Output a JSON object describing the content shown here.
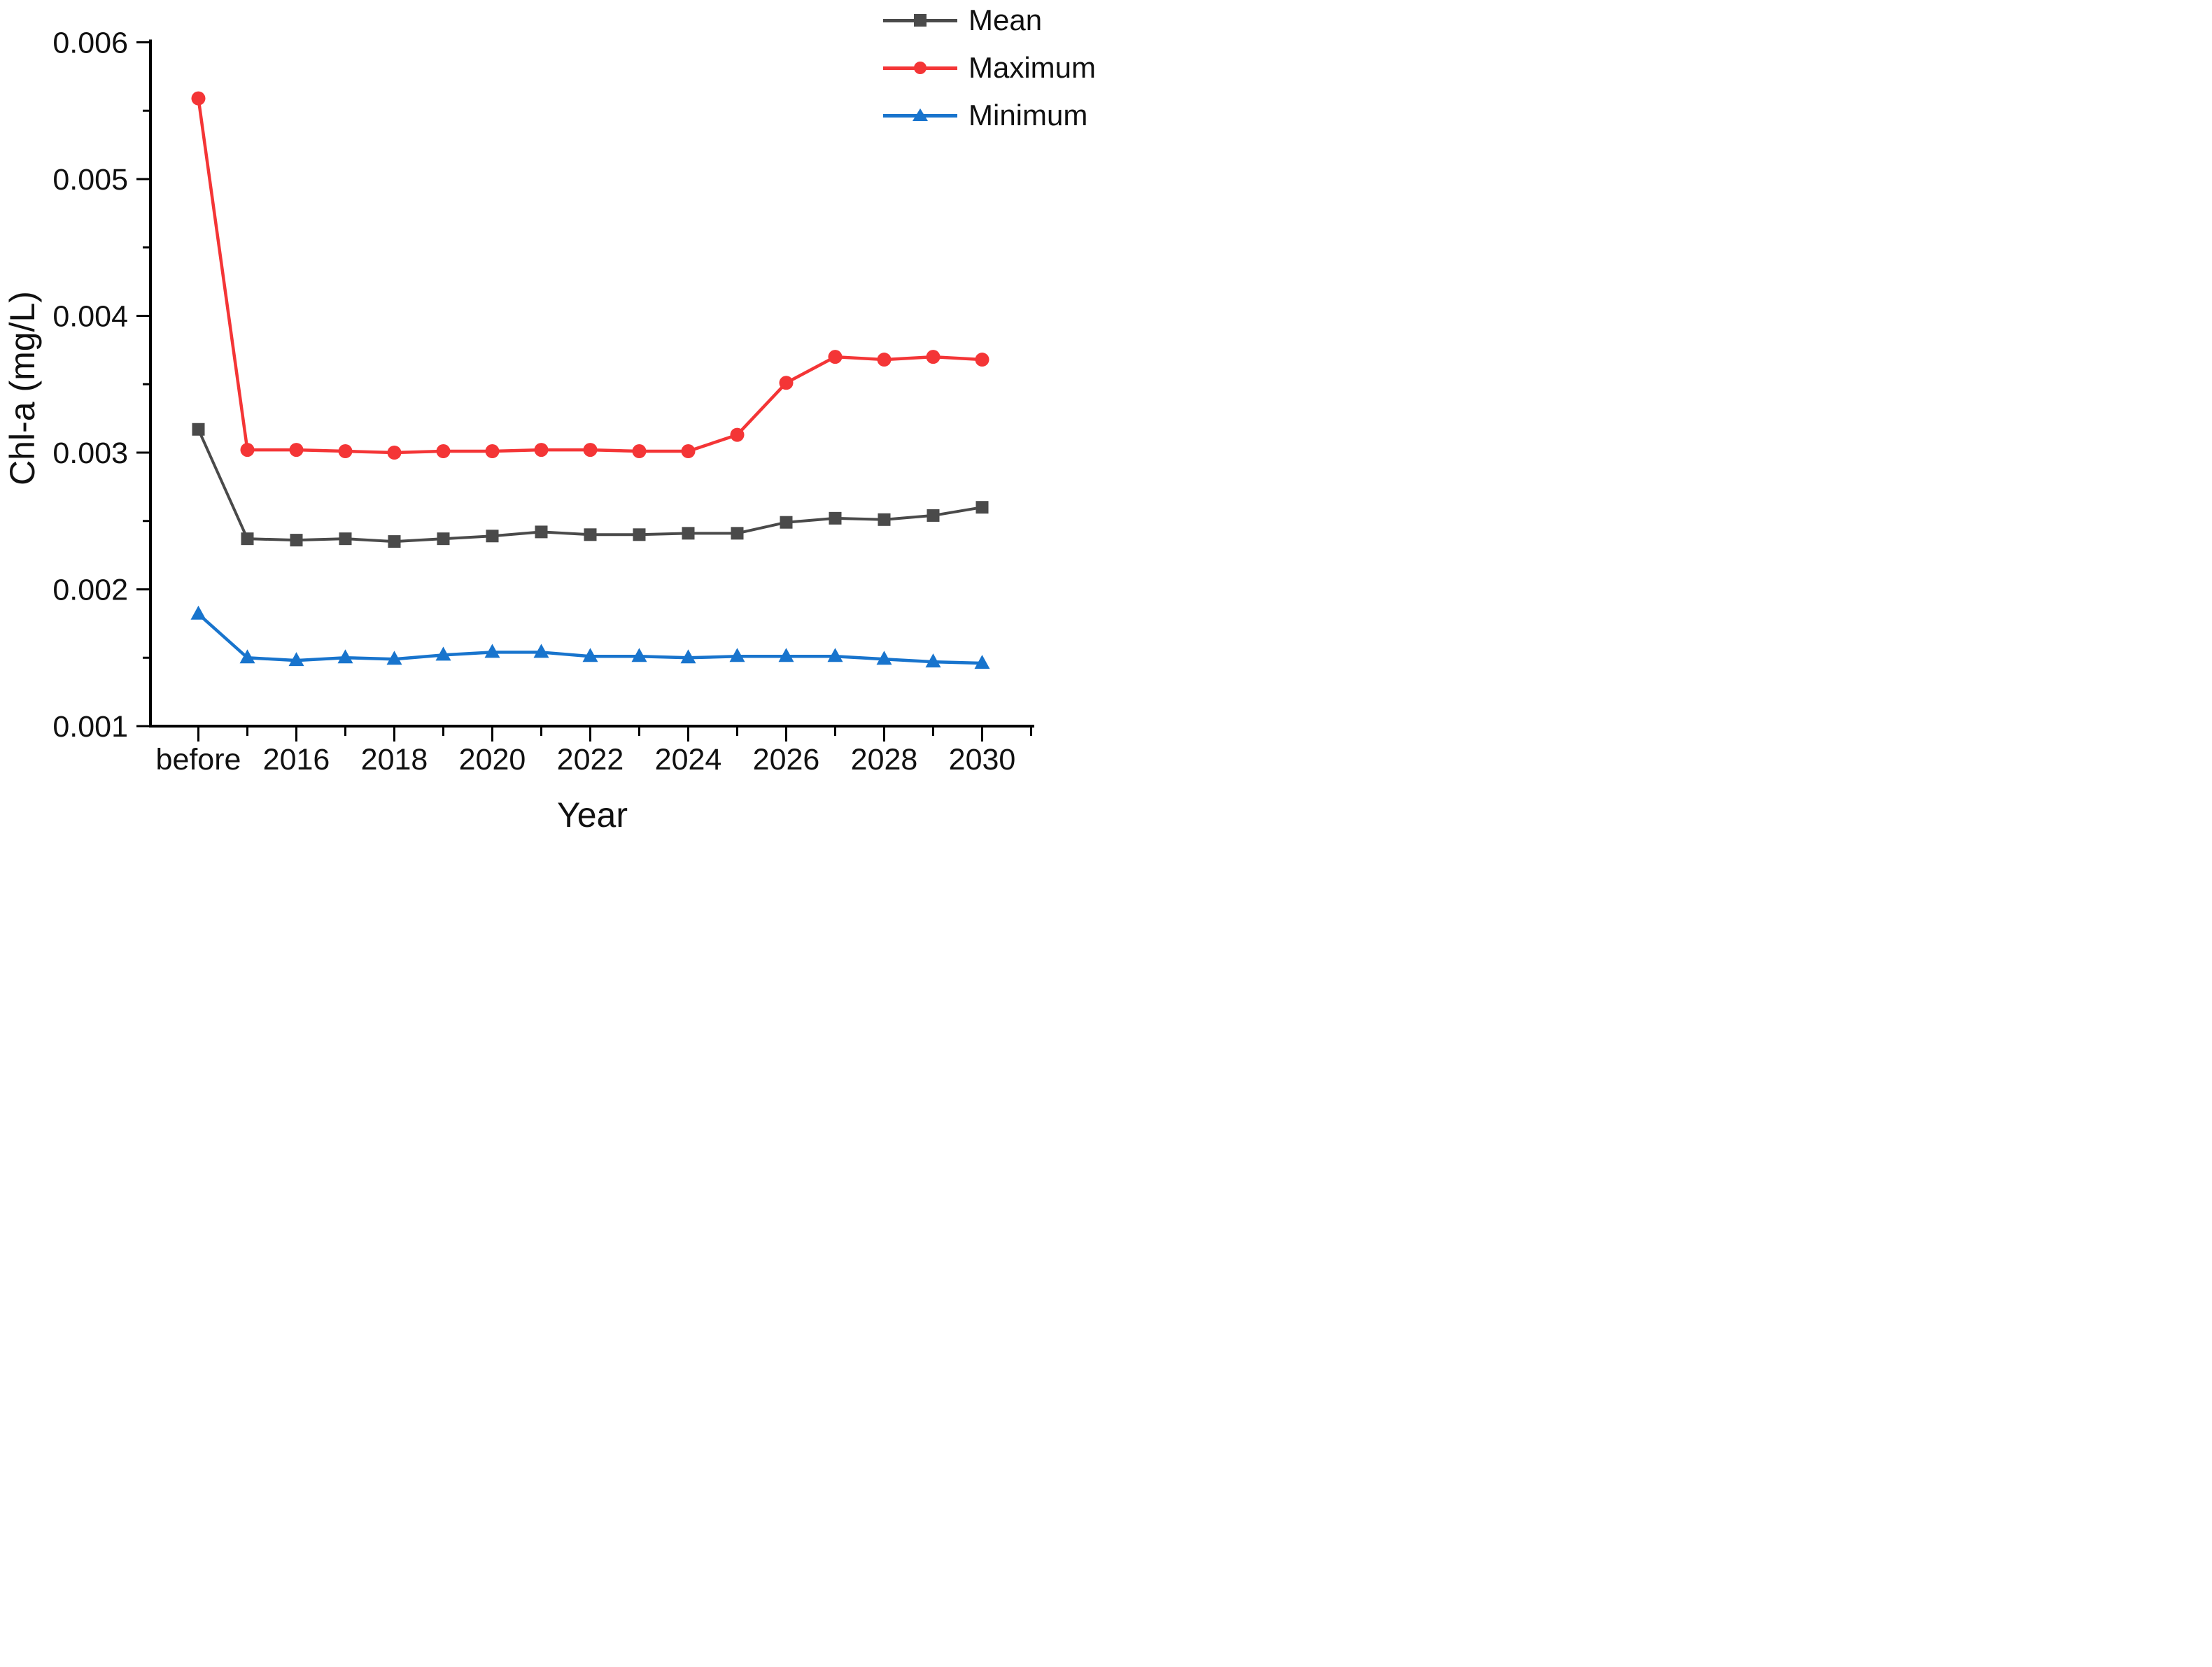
{
  "figure": {
    "ylabel": "Chl-a (mg/L)",
    "xlabel": "Year"
  },
  "chart_data": {
    "type": "line",
    "title": "",
    "xlabel": "Year",
    "ylabel": "Chl-a (mg/L)",
    "categories": [
      "before",
      "2015",
      "2016",
      "2017",
      "2018",
      "2019",
      "2020",
      "2021",
      "2022",
      "2023",
      "2024",
      "2025",
      "2026",
      "2027",
      "2028",
      "2029",
      "2030"
    ],
    "x_tick_labels": [
      "before",
      "2016",
      "2018",
      "2020",
      "2022",
      "2024",
      "2026",
      "2028",
      "2030"
    ],
    "x_labeled_indices": [
      0,
      2,
      4,
      6,
      8,
      10,
      12,
      14,
      16
    ],
    "ylim": [
      0.001,
      0.006
    ],
    "y_major_step": 0.001,
    "y_minor_step": 0.0005,
    "y_tick_labels": [
      "0.001",
      "0.002",
      "0.003",
      "0.004",
      "0.005",
      "0.006"
    ],
    "grid": false,
    "legend_position": "top-right",
    "axis_color": "#000000",
    "series": [
      {
        "name": "Mean",
        "color": "#4a4a4a",
        "marker": "square",
        "values": [
          0.00317,
          0.00237,
          0.00236,
          0.00237,
          0.00235,
          0.00237,
          0.00239,
          0.00242,
          0.0024,
          0.0024,
          0.00241,
          0.00241,
          0.00249,
          0.00252,
          0.00251,
          0.00254,
          0.0026
        ]
      },
      {
        "name": "Maximum",
        "color": "#f43536",
        "marker": "circle",
        "values": [
          0.00559,
          0.00302,
          0.00302,
          0.00301,
          0.003,
          0.00301,
          0.00301,
          0.00302,
          0.00302,
          0.00301,
          0.00301,
          0.00313,
          0.00351,
          0.0037,
          0.00368,
          0.0037,
          0.00368
        ]
      },
      {
        "name": "Minimum",
        "color": "#1874cd",
        "marker": "triangle",
        "values": [
          0.00182,
          0.0015,
          0.00148,
          0.0015,
          0.00149,
          0.00152,
          0.00154,
          0.00154,
          0.00151,
          0.00151,
          0.0015,
          0.00151,
          0.00151,
          0.00151,
          0.00149,
          0.00147,
          0.00146
        ]
      }
    ]
  }
}
